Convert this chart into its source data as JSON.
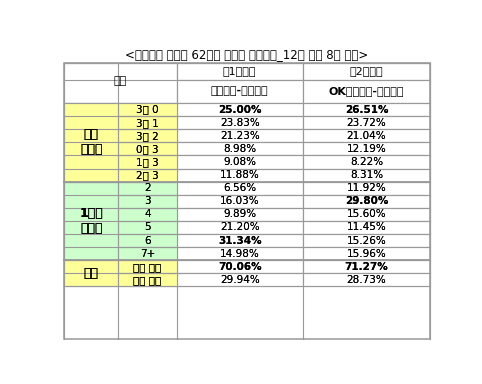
{
  "title": "<배구토토 스페셜 62회차 투표율 중간집계_12일 오전 8시 기준>",
  "game1_top": "〈1경기〉",
  "game2_top": "〈2경기〉",
  "gubun": "구분",
  "game1_team": "도로공사-흥국생명",
  "game2_team": "OK저축은행-대한항공",
  "sections": [
    {
      "label": "세트\n스코어",
      "bg_color": "#FFFF99",
      "rows": [
        {
          "sub": "3대 0",
          "v1": "25.00%",
          "v2": "26.51%",
          "v1_bold": true,
          "v2_bold": true
        },
        {
          "sub": "3대 1",
          "v1": "23.83%",
          "v2": "23.72%",
          "v1_bold": false,
          "v2_bold": false
        },
        {
          "sub": "3대 2",
          "v1": "21.23%",
          "v2": "21.04%",
          "v1_bold": false,
          "v2_bold": false
        },
        {
          "sub": "0대 3",
          "v1": "8.98%",
          "v2": "12.19%",
          "v1_bold": false,
          "v2_bold": false
        },
        {
          "sub": "1대 3",
          "v1": "9.08%",
          "v2": "8.22%",
          "v1_bold": false,
          "v2_bold": false
        },
        {
          "sub": "2대 3",
          "v1": "11.88%",
          "v2": "8.31%",
          "v1_bold": false,
          "v2_bold": false
        }
      ]
    },
    {
      "label": "1세트\n점수차",
      "bg_color": "#CCFFCC",
      "rows": [
        {
          "sub": "2",
          "v1": "6.56%",
          "v2": "11.92%",
          "v1_bold": false,
          "v2_bold": false
        },
        {
          "sub": "3",
          "v1": "16.03%",
          "v2": "29.80%",
          "v1_bold": false,
          "v2_bold": true
        },
        {
          "sub": "4",
          "v1": "9.89%",
          "v2": "15.60%",
          "v1_bold": false,
          "v2_bold": false
        },
        {
          "sub": "5",
          "v1": "21.20%",
          "v2": "11.45%",
          "v1_bold": false,
          "v2_bold": false
        },
        {
          "sub": "6",
          "v1": "31.34%",
          "v2": "15.26%",
          "v1_bold": true,
          "v2_bold": false
        },
        {
          "sub": "7+",
          "v1": "14.98%",
          "v2": "15.96%",
          "v1_bold": false,
          "v2_bold": false
        }
      ]
    },
    {
      "label": "승패",
      "bg_color": "#FFFF99",
      "rows": [
        {
          "sub": "홈팀 승리",
          "v1": "70.06%",
          "v2": "71.27%",
          "v1_bold": true,
          "v2_bold": true
        },
        {
          "sub": "원정 승리",
          "v1": "29.94%",
          "v2": "28.73%",
          "v1_bold": false,
          "v2_bold": false
        }
      ]
    }
  ],
  "border_color": "#999999",
  "white": "#FFFFFF",
  "text_color": "#000000",
  "title_fontsize": 8.5,
  "header_fontsize": 8,
  "cell_fontsize": 7.5,
  "label_fontsize": 9
}
